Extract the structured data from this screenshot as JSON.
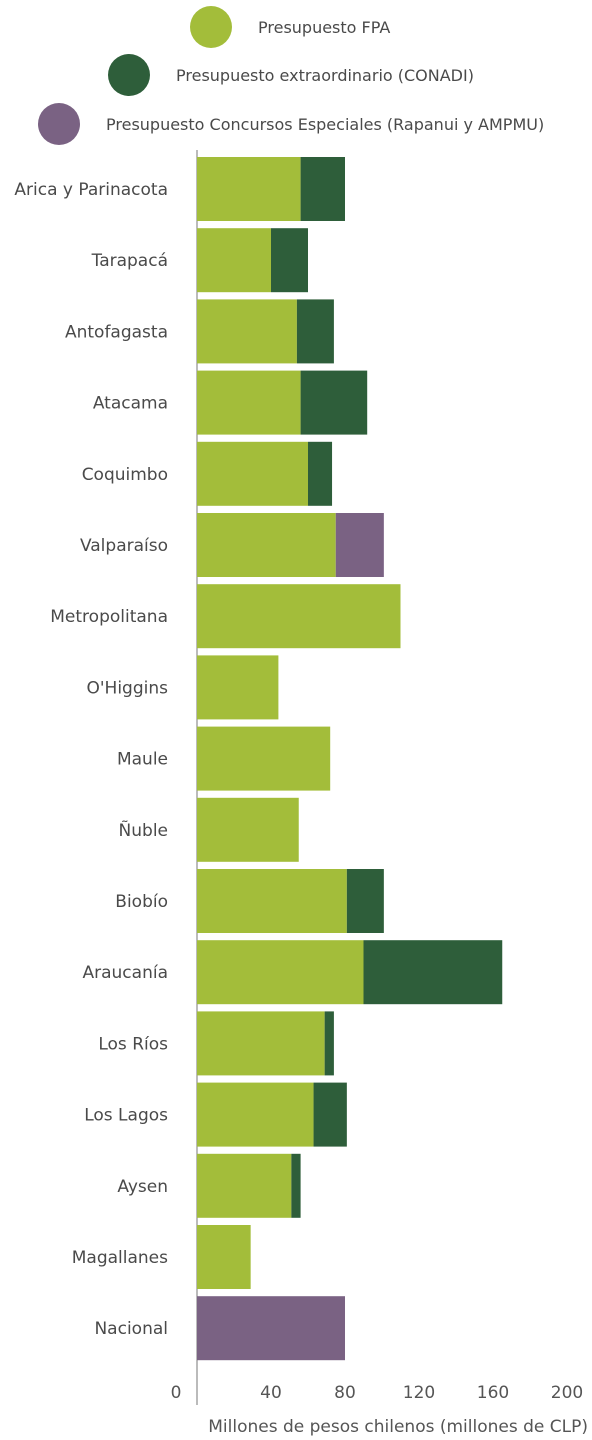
{
  "chart_data": {
    "type": "bar",
    "orientation": "horizontal",
    "stacked": true,
    "xlabel": "Millones de pesos chilenos (millones de CLP)",
    "xlim": [
      0,
      200
    ],
    "xticks": [
      0,
      40,
      80,
      120,
      160,
      200
    ],
    "grid": false,
    "legend_position": "top",
    "categories": [
      "Arica y Parinacota",
      "Tarapacá",
      "Antofagasta",
      "Atacama",
      "Coquimbo",
      "Valparaíso",
      "Metropolitana",
      "O'Higgins",
      "Maule",
      "Ñuble",
      "Biobío",
      "Araucanía",
      "Los Ríos",
      "Los Lagos",
      "Aysen",
      "Magallanes",
      "Nacional"
    ],
    "series": [
      {
        "name": "Presupuesto FPA",
        "color": "#a3bd3a",
        "values": [
          56,
          40,
          54,
          56,
          60,
          75,
          110,
          44,
          72,
          55,
          81,
          90,
          69,
          63,
          51,
          29,
          0
        ]
      },
      {
        "name": "Presupuesto extraordinario (CONADI)",
        "color": "#2e5e3a",
        "values": [
          24,
          20,
          20,
          36,
          13,
          0,
          0,
          0,
          0,
          0,
          20,
          75,
          5,
          18,
          5,
          0,
          0
        ]
      },
      {
        "name": "Presupuesto Concursos Especiales (Rapanui y AMPMU)",
        "color": "#7a6283",
        "values": [
          0,
          0,
          0,
          0,
          0,
          26,
          0,
          0,
          0,
          0,
          0,
          0,
          0,
          0,
          0,
          0,
          80
        ]
      }
    ]
  }
}
